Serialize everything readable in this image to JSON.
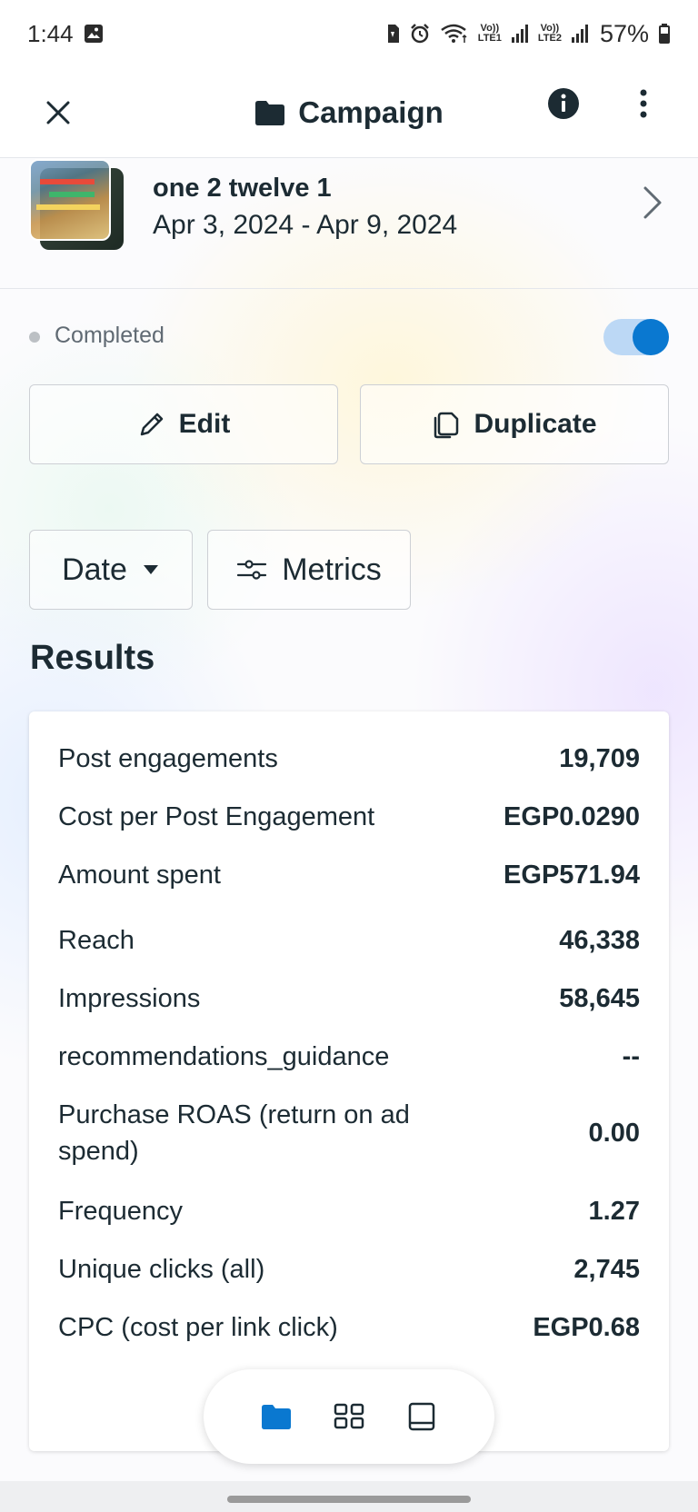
{
  "status_bar": {
    "time": "1:44",
    "lte1": "LTE1",
    "lte2": "LTE2",
    "volte": "Vo))",
    "battery": "57%"
  },
  "header": {
    "title": "Campaign",
    "icons": [
      "close-icon",
      "folder-icon",
      "info-icon",
      "more-vertical-icon"
    ]
  },
  "campaign": {
    "name": "one 2 twelve 1",
    "dates": "Apr 3, 2024 - Apr 9, 2024"
  },
  "status": {
    "label": "Completed",
    "toggle_on": true
  },
  "actions": {
    "edit_label": "Edit",
    "duplicate_label": "Duplicate"
  },
  "filters": {
    "date_label": "Date",
    "metrics_label": "Metrics"
  },
  "results": {
    "title": "Results",
    "rows": [
      {
        "label": "Post engagements",
        "value": "19,709"
      },
      {
        "label": "Cost per Post Engagement",
        "value": "EGP0.0290"
      },
      {
        "label": "Amount spent",
        "value": "EGP571.94"
      },
      {
        "label": "Reach",
        "value": "46,338"
      },
      {
        "label": "Impressions",
        "value": "58,645"
      },
      {
        "label": "recommendations_guidance",
        "value": "--"
      },
      {
        "label": "Purchase ROAS (return on ad spend)",
        "value": "0.00"
      },
      {
        "label": "Frequency",
        "value": "1.27"
      },
      {
        "label": "Unique clicks (all)",
        "value": "2,745"
      },
      {
        "label": "CPC (cost per link click)",
        "value": "EGP0.68"
      }
    ]
  },
  "bottom_nav": {
    "items": [
      "folder-icon",
      "grid-icon",
      "tablet-icon"
    ],
    "active_color": "#0a78d0"
  },
  "colors": {
    "accent": "#0a78d0",
    "text": "#1c2b33",
    "muted": "#606a73"
  }
}
